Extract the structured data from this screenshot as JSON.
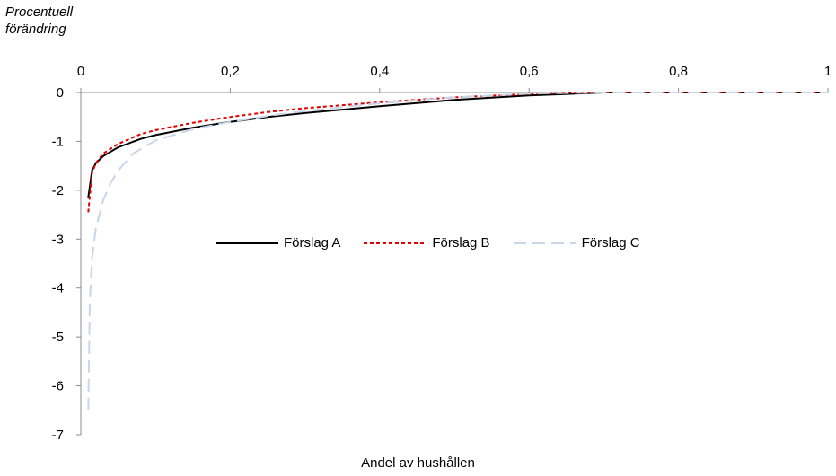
{
  "chart_data": {
    "type": "line",
    "ylabel": [
      "Procentuell",
      "förändring"
    ],
    "xlabel": "Andel av hushållen",
    "xlim": [
      0,
      1
    ],
    "ylim": [
      -7,
      0
    ],
    "xticks": [
      "0",
      "0,2",
      "0,4",
      "0,6",
      "0,8",
      "1"
    ],
    "yticks": [
      "0",
      "-1",
      "-2",
      "-3",
      "-4",
      "-5",
      "-6",
      "-7"
    ],
    "legend_position": "center",
    "series": [
      {
        "name": "Förslag A",
        "color": "#000000",
        "dash": "solid",
        "x": [
          0.01,
          0.015,
          0.02,
          0.03,
          0.05,
          0.08,
          0.1,
          0.15,
          0.2,
          0.25,
          0.3,
          0.4,
          0.5,
          0.6,
          0.7,
          0.8,
          0.9,
          1.0
        ],
        "y": [
          -2.15,
          -1.6,
          -1.45,
          -1.3,
          -1.12,
          -0.95,
          -0.87,
          -0.72,
          -0.6,
          -0.5,
          -0.42,
          -0.28,
          -0.15,
          -0.06,
          0,
          0,
          0,
          0
        ]
      },
      {
        "name": "Förslag B",
        "color": "#e00000",
        "dash": "short",
        "x": [
          0.01,
          0.015,
          0.02,
          0.03,
          0.05,
          0.08,
          0.1,
          0.15,
          0.2,
          0.25,
          0.3,
          0.4,
          0.5,
          0.6,
          0.65,
          0.7,
          0.8,
          0.9,
          1.0
        ],
        "y": [
          -2.45,
          -1.65,
          -1.45,
          -1.25,
          -1.05,
          -0.85,
          -0.77,
          -0.62,
          -0.5,
          -0.4,
          -0.32,
          -0.2,
          -0.1,
          -0.03,
          0,
          0,
          0,
          0,
          0
        ]
      },
      {
        "name": "Förslag C",
        "color": "#c7d6ea",
        "dash": "long",
        "x": [
          0.01,
          0.012,
          0.015,
          0.02,
          0.03,
          0.04,
          0.05,
          0.07,
          0.1,
          0.15,
          0.2,
          0.25,
          0.3,
          0.4,
          0.5,
          0.6,
          0.7,
          0.8,
          0.9,
          1.0
        ],
        "y": [
          -6.5,
          -4.3,
          -3.4,
          -2.8,
          -2.2,
          -1.85,
          -1.6,
          -1.25,
          -0.98,
          -0.75,
          -0.6,
          -0.48,
          -0.38,
          -0.22,
          -0.1,
          -0.02,
          0,
          0,
          0,
          0
        ]
      }
    ]
  }
}
